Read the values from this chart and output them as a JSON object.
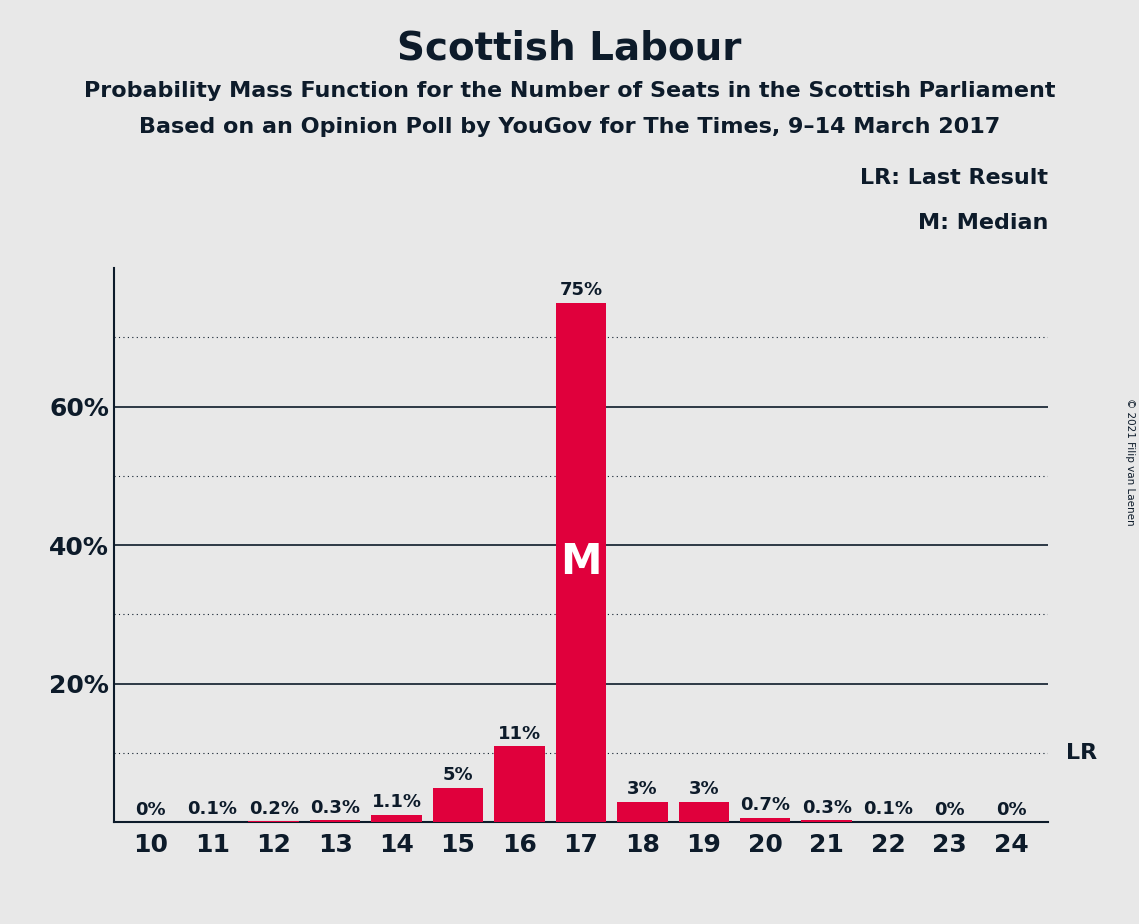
{
  "title": "Scottish Labour",
  "subtitle1": "Probability Mass Function for the Number of Seats in the Scottish Parliament",
  "subtitle2": "Based on an Opinion Poll by YouGov for The Times, 9–14 March 2017",
  "copyright": "© 2021 Filip van Laenen",
  "categories": [
    10,
    11,
    12,
    13,
    14,
    15,
    16,
    17,
    18,
    19,
    20,
    21,
    22,
    23,
    24
  ],
  "values": [
    0.0,
    0.1,
    0.2,
    0.3,
    1.1,
    5.0,
    11.0,
    75.0,
    3.0,
    3.0,
    0.7,
    0.3,
    0.1,
    0.0,
    0.0
  ],
  "labels": [
    "0%",
    "0.1%",
    "0.2%",
    "0.3%",
    "1.1%",
    "5%",
    "11%",
    "75%",
    "3%",
    "3%",
    "0.7%",
    "0.3%",
    "0.1%",
    "0%",
    "0%"
  ],
  "bar_color": "#E0003C",
  "median_seat": 17,
  "median_label": "M",
  "lr_value": 10.0,
  "legend_lr": "LR: Last Result",
  "legend_m": "M: Median",
  "background_color": "#E8E8E8",
  "solid_yticks": [
    20,
    40,
    60
  ],
  "dotted_yticks": [
    10,
    30,
    50,
    70
  ],
  "ylim": [
    0,
    80
  ],
  "title_color": "#0D1B2A",
  "axis_color": "#0D1B2A",
  "bar_label_color": "#0D1B2A",
  "title_fontsize": 28,
  "subtitle_fontsize": 16,
  "tick_fontsize": 18,
  "label_fontsize": 13,
  "legend_fontsize": 16,
  "median_fontsize": 30
}
